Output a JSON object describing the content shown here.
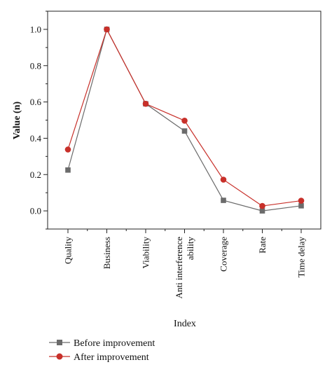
{
  "chart_data": {
    "type": "line",
    "xlabel": "Index",
    "ylabel": "Value (n)",
    "categories": [
      [
        "Quality"
      ],
      [
        "Business"
      ],
      [
        "Viability"
      ],
      [
        "Anti interference",
        "ability"
      ],
      [
        "Coverage"
      ],
      [
        "Rate"
      ],
      [
        "Time delay"
      ]
    ],
    "ylim": [
      -0.1,
      1.1
    ],
    "yticks": [
      "0.0",
      "0.2",
      "0.4",
      "0.6",
      "0.8",
      "1.0"
    ],
    "ytick_values": [
      0.0,
      0.2,
      0.4,
      0.6,
      0.8,
      1.0
    ],
    "grid": false,
    "legend_position": "bottom-left",
    "series": [
      {
        "name": "Before improvement",
        "marker": "square",
        "color": "#6b6b6b",
        "values": [
          0.225,
          1.0,
          0.59,
          0.44,
          0.058,
          0.0,
          0.028
        ]
      },
      {
        "name": "After improvement",
        "marker": "circle",
        "color": "#c8302a",
        "values": [
          0.338,
          1.0,
          0.59,
          0.497,
          0.172,
          0.027,
          0.056
        ]
      }
    ]
  }
}
